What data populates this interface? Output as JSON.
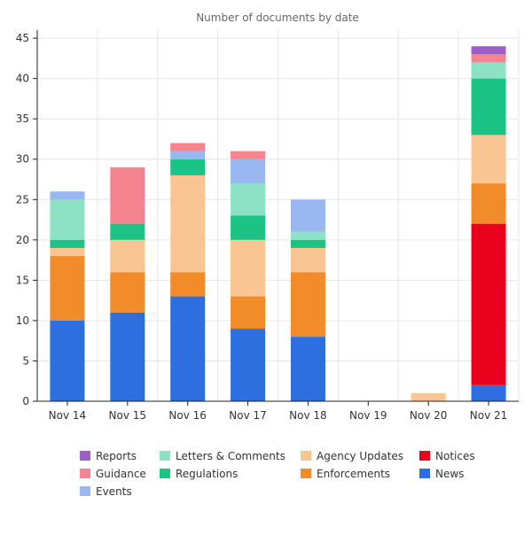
{
  "chart_data": {
    "type": "bar",
    "stacked": true,
    "title": "Number of documents by date",
    "xlabel": "",
    "ylabel": "",
    "ylim": [
      0,
      46
    ],
    "yticks": [
      0,
      5,
      10,
      15,
      20,
      25,
      30,
      35,
      40,
      45
    ],
    "grid": true,
    "legend_position": "bottom",
    "categories": [
      "Nov 14",
      "Nov 15",
      "Nov 16",
      "Nov 17",
      "Nov 18",
      "Nov 19",
      "Nov 20",
      "Nov 21"
    ],
    "series": [
      {
        "name": "News",
        "color": "#2e6fe0",
        "values": [
          10,
          11,
          13,
          9,
          8,
          0,
          0,
          2
        ]
      },
      {
        "name": "Notices",
        "color": "#e8001c",
        "values": [
          0,
          0,
          0,
          0,
          0,
          0,
          0,
          20
        ]
      },
      {
        "name": "Enforcements",
        "color": "#f28c2b",
        "values": [
          8,
          5,
          3,
          4,
          8,
          0,
          0,
          5
        ]
      },
      {
        "name": "Agency Updates",
        "color": "#f8c593",
        "values": [
          1,
          4,
          12,
          7,
          3,
          0,
          1,
          6
        ]
      },
      {
        "name": "Regulations",
        "color": "#1bc485",
        "values": [
          1,
          2,
          2,
          3,
          1,
          0,
          0,
          7
        ]
      },
      {
        "name": "Letters & Comments",
        "color": "#8de2c6",
        "values": [
          5,
          0,
          0,
          4,
          1,
          0,
          0,
          2
        ]
      },
      {
        "name": "Events",
        "color": "#99b7f0",
        "values": [
          1,
          0,
          1,
          3,
          4,
          0,
          0,
          0
        ]
      },
      {
        "name": "Guidance",
        "color": "#f48490",
        "values": [
          0,
          7,
          1,
          1,
          0,
          0,
          0,
          1
        ]
      },
      {
        "name": "Reports",
        "color": "#9a60c8",
        "values": [
          0,
          0,
          0,
          0,
          0,
          0,
          0,
          1
        ]
      }
    ],
    "legend_order": [
      "Reports",
      "Letters & Comments",
      "Agency Updates",
      "Notices",
      "Guidance",
      "Regulations",
      "Enforcements",
      "News",
      "Events"
    ]
  }
}
